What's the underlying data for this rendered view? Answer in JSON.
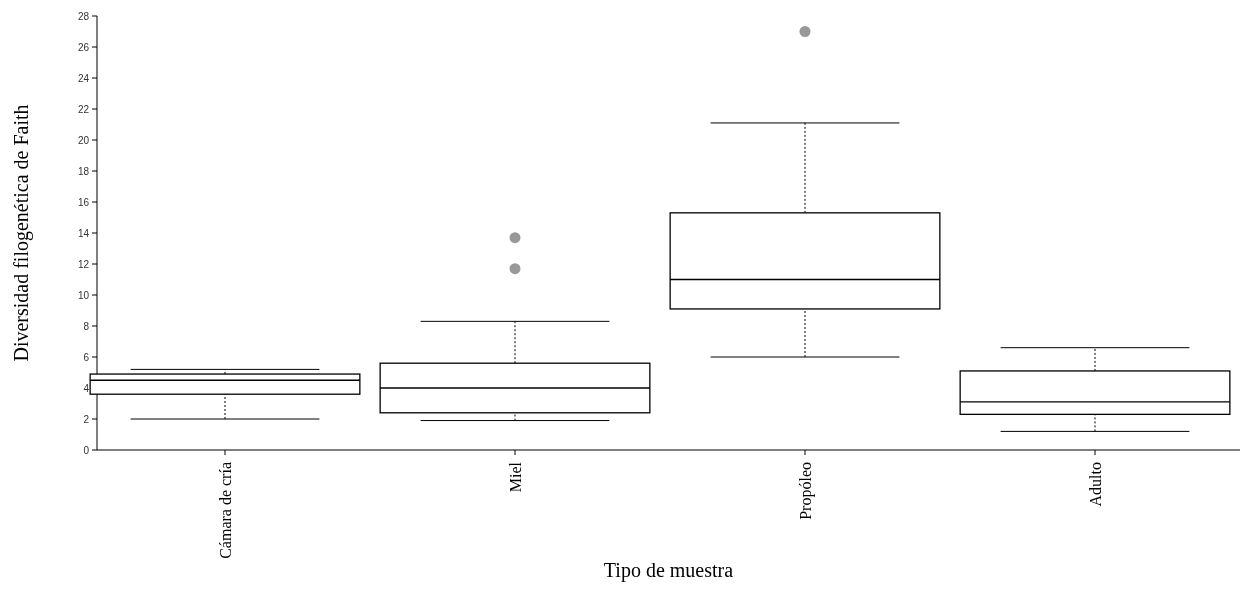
{
  "chart_data": {
    "type": "box",
    "xlabel": "Tipo de muestra",
    "ylabel": "Diversidad filogenética de Faith",
    "categories": [
      "Cámara de cría",
      "Miel",
      "Propóleo",
      "Adulto"
    ],
    "boxes": [
      {
        "low": 2.0,
        "q1": 3.6,
        "median": 4.5,
        "q3": 4.9,
        "high": 5.2
      },
      {
        "low": 1.9,
        "q1": 2.4,
        "median": 4.0,
        "q3": 5.6,
        "high": 8.3,
        "outliers": [
          11.7,
          13.7
        ]
      },
      {
        "low": 6.0,
        "q1": 9.1,
        "median": 11.0,
        "q3": 15.3,
        "high": 21.1,
        "outliers": [
          27.0
        ]
      },
      {
        "low": 1.2,
        "q1": 2.3,
        "median": 3.1,
        "q3": 5.1,
        "high": 6.6
      }
    ],
    "ylim": [
      0,
      28
    ],
    "yticks": [
      0,
      2,
      4,
      6,
      8,
      10,
      12,
      14,
      16,
      18,
      20,
      22,
      24,
      26,
      28
    ],
    "grid": false
  }
}
